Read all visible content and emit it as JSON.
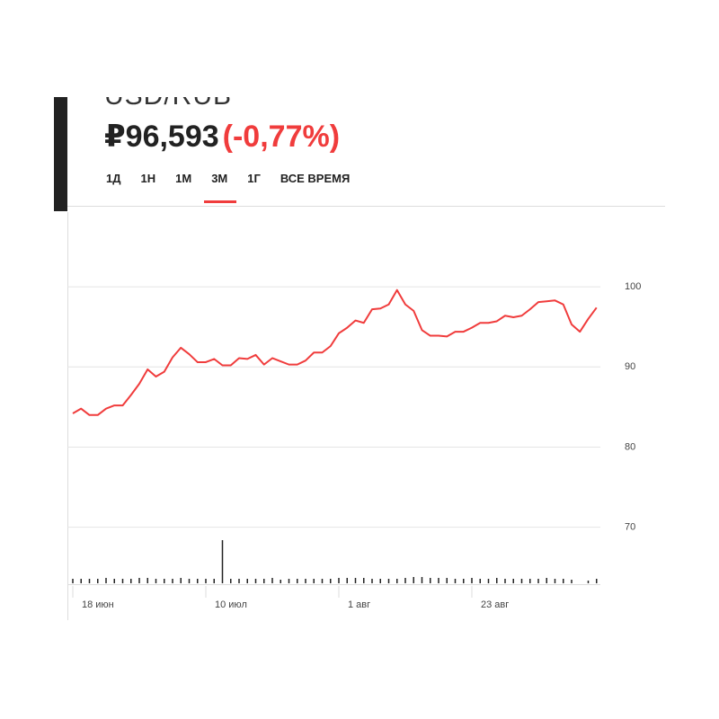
{
  "header": {
    "pair": "USD/RUB",
    "price": "₽96,593",
    "change": "(-0,77%)"
  },
  "tabs": [
    "1Д",
    "1Н",
    "1М",
    "3М",
    "1Г",
    "ВСЕ ВРЕМЯ"
  ],
  "active_tab": 3,
  "chart_data": {
    "type": "line",
    "categories": [
      "18 июн",
      null,
      null,
      null,
      null,
      null,
      null,
      null,
      null,
      null,
      null,
      null,
      null,
      null,
      null,
      null,
      "10 июл",
      null,
      null,
      null,
      null,
      null,
      null,
      null,
      null,
      null,
      null,
      null,
      null,
      null,
      null,
      null,
      "1 авг",
      null,
      null,
      null,
      null,
      null,
      null,
      null,
      null,
      null,
      null,
      null,
      null,
      null,
      null,
      null,
      "23 авг",
      null,
      null,
      null,
      null,
      null,
      null,
      null,
      null,
      null,
      null,
      null,
      null,
      null,
      null,
      null
    ],
    "values": [
      84.2,
      84.8,
      84.0,
      84.0,
      84.8,
      85.2,
      85.2,
      86.5,
      87.9,
      89.7,
      88.8,
      89.4,
      91.2,
      92.4,
      91.6,
      90.6,
      90.6,
      91.0,
      90.2,
      90.2,
      91.1,
      91.0,
      91.5,
      90.3,
      91.1,
      90.7,
      90.3,
      90.3,
      90.8,
      91.8,
      91.8,
      92.6,
      94.2,
      94.9,
      95.8,
      95.5,
      97.2,
      97.3,
      97.8,
      99.6,
      97.8,
      97.0,
      94.6,
      93.9,
      93.9,
      93.8,
      94.4,
      94.4,
      94.9,
      95.5,
      95.5,
      95.7,
      96.4,
      96.2,
      96.4,
      97.2,
      98.1,
      98.2,
      98.3,
      97.8,
      95.3,
      94.4,
      96.0,
      97.4
    ],
    "color": "#f03c3c",
    "ylim": [
      63,
      110
    ],
    "yticks": [
      70,
      80,
      90,
      100
    ],
    "grid": true,
    "volume": {
      "color": "#222222",
      "values": [
        5,
        5,
        5,
        5,
        6,
        5,
        5,
        5,
        6,
        6,
        5,
        5,
        5,
        6,
        5,
        5,
        5,
        5,
        48,
        5,
        5,
        5,
        5,
        5,
        6,
        4,
        5,
        5,
        5,
        5,
        5,
        5,
        6,
        6,
        6,
        6,
        5,
        5,
        5,
        5,
        6,
        7,
        7,
        6,
        6,
        6,
        5,
        5,
        6,
        5,
        5,
        6,
        5,
        5,
        5,
        5,
        5,
        6,
        5,
        5,
        4,
        0,
        3,
        5
      ]
    }
  }
}
